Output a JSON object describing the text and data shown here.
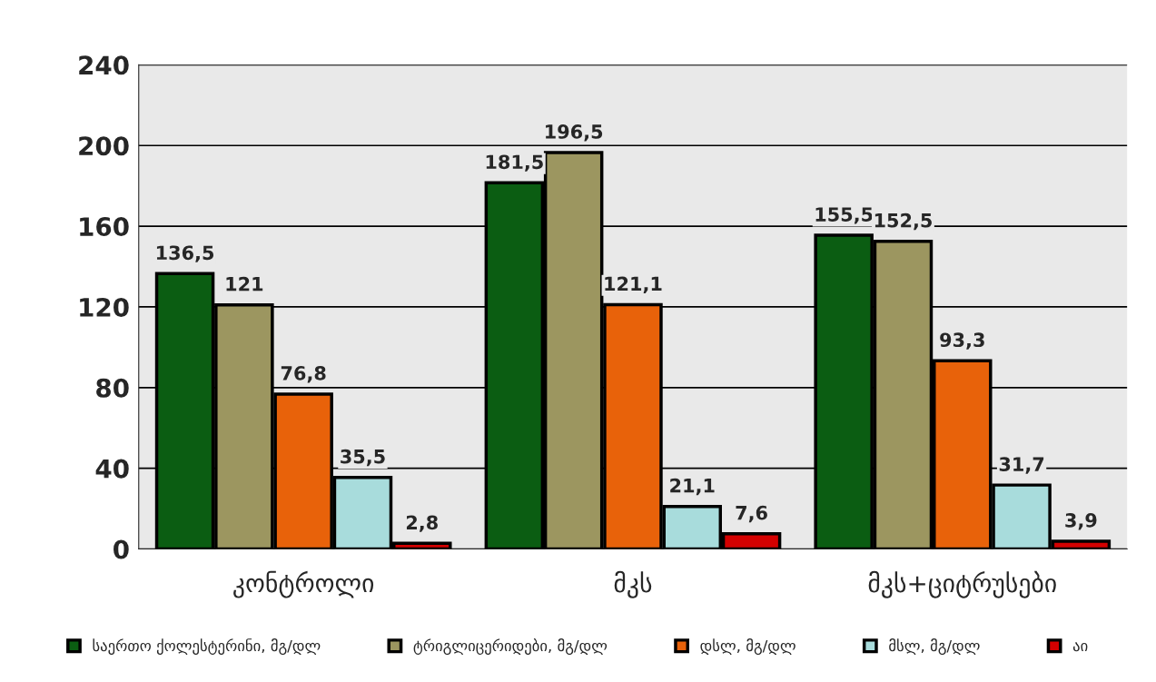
{
  "chart_data": {
    "type": "bar",
    "categories": [
      "კონტროლი",
      "მკს",
      "მკს+ციტრუსები"
    ],
    "series": [
      {
        "name": "საერთო ქოლესტერინი, მგ/დლ",
        "color": "#0b5d12",
        "values": [
          136.5,
          181.5,
          155.5
        ],
        "value_labels": [
          "136,5",
          "181,5",
          "155,5"
        ]
      },
      {
        "name": "ტრიგლიცერიდები, მგ/დლ",
        "color": "#9c9660",
        "values": [
          121,
          196.5,
          152.5
        ],
        "value_labels": [
          "121",
          "196,5",
          "152,5"
        ]
      },
      {
        "name": "დსლ, მგ/დლ",
        "color": "#e8620a",
        "values": [
          76.8,
          121.1,
          93.3
        ],
        "value_labels": [
          "76,8",
          "121,1",
          "93,3"
        ]
      },
      {
        "name": "მსლ, მგ/დლ",
        "color": "#a8dcdc",
        "values": [
          35.5,
          21.1,
          31.7
        ],
        "value_labels": [
          "35,5",
          "21,1",
          "31,7"
        ]
      },
      {
        "name": "აი",
        "color": "#d40000",
        "values": [
          2.8,
          7.6,
          3.9
        ],
        "value_labels": [
          "2,8",
          "7,6",
          "3,9"
        ]
      }
    ],
    "ylim": [
      0,
      240
    ],
    "yticks": [
      0,
      40,
      80,
      120,
      160,
      200,
      240
    ],
    "grid": "y",
    "legend": "bottom"
  }
}
